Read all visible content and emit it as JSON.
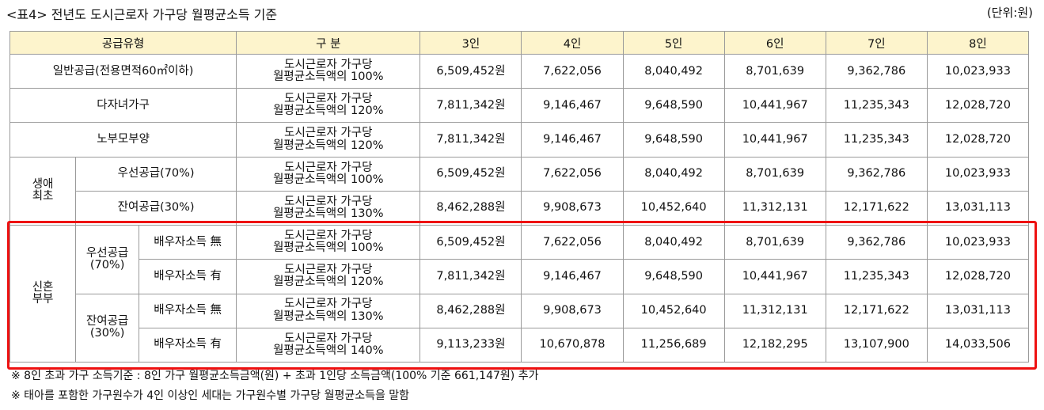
{
  "title": "<표4> 전년도 도시근로자 가구당 월평균소득 기준",
  "unit": "(단위:원)",
  "header": {
    "type": "공급유형",
    "category": "구 분",
    "cols": [
      "3인",
      "4인",
      "5인",
      "6인",
      "7인",
      "8인"
    ]
  },
  "rows": [
    {
      "label": "일반공급(전용면적60㎡이하)",
      "criteria_1": "도시근로자 가구당",
      "criteria_2": "월평균소득액의 100%",
      "values": [
        "6,509,452원",
        "7,622,056",
        "8,040,492",
        "8,701,639",
        "9,362,786",
        "10,023,933"
      ]
    },
    {
      "label": "다자녀가구",
      "criteria_1": "도시근로자 가구당",
      "criteria_2": "월평균소득액의 120%",
      "values": [
        "7,811,342원",
        "9,146,467",
        "9,648,590",
        "10,441,967",
        "11,235,343",
        "12,028,720"
      ]
    },
    {
      "label": "노부모부양",
      "criteria_1": "도시근로자 가구당",
      "criteria_2": "월평균소득액의 120%",
      "values": [
        "7,811,342원",
        "9,146,467",
        "9,648,590",
        "10,441,967",
        "11,235,343",
        "12,028,720"
      ]
    },
    {
      "group": "생애최초",
      "group_1": "생애",
      "group_2": "최초",
      "label": "우선공급(70%)",
      "criteria_1": "도시근로자 가구당",
      "criteria_2": "월평균소득액의 100%",
      "values": [
        "6,509,452원",
        "7,622,056",
        "8,040,492",
        "8,701,639",
        "9,362,786",
        "10,023,933"
      ]
    },
    {
      "label": "잔여공급(30%)",
      "criteria_1": "도시근로자 가구당",
      "criteria_2": "월평균소득액의 130%",
      "values": [
        "8,462,288원",
        "9,908,673",
        "10,452,640",
        "11,312,131",
        "12,171,622",
        "13,031,113"
      ]
    },
    {
      "group_1": "신혼",
      "group_2": "부부",
      "sub_1": "우선공급",
      "sub_2": "(70%)",
      "label": "배우자소득 無",
      "criteria_1": "도시근로자 가구당",
      "criteria_2": "월평균소득액의 100%",
      "values": [
        "6,509,452원",
        "7,622,056",
        "8,040,492",
        "8,701,639",
        "9,362,786",
        "10,023,933"
      ]
    },
    {
      "label": "배우자소득 有",
      "criteria_1": "도시근로자 가구당",
      "criteria_2": "월평균소득액의 120%",
      "values": [
        "7,811,342원",
        "9,146,467",
        "9,648,590",
        "10,441,967",
        "11,235,343",
        "12,028,720"
      ]
    },
    {
      "sub_1": "잔여공급",
      "sub_2": "(30%)",
      "label": "배우자소득 無",
      "criteria_1": "도시근로자 가구당",
      "criteria_2": "월평균소득액의 130%",
      "values": [
        "8,462,288원",
        "9,908,673",
        "10,452,640",
        "11,312,131",
        "12,171,622",
        "13,031,113"
      ]
    },
    {
      "label": "배우자소득 有",
      "criteria_1": "도시근로자 가구당",
      "criteria_2": "월평균소득액의 140%",
      "values": [
        "9,113,233원",
        "10,670,878",
        "11,256,689",
        "12,182,295",
        "13,107,900",
        "14,033,506"
      ]
    }
  ],
  "notes": [
    "※ 8인 초과 가구 소득기준 : 8인 가구 월평균소득금액(원) + 초과 1인당 소득금액(100% 기준 661,147원) 추가",
    "※ 태아를 포함한 가구원수가 4인 이상인 세대는 가구원수별 가구당 월평균소득을 말함"
  ],
  "highlight_color": "#ee1111",
  "header_bg": "#fdf4cc"
}
